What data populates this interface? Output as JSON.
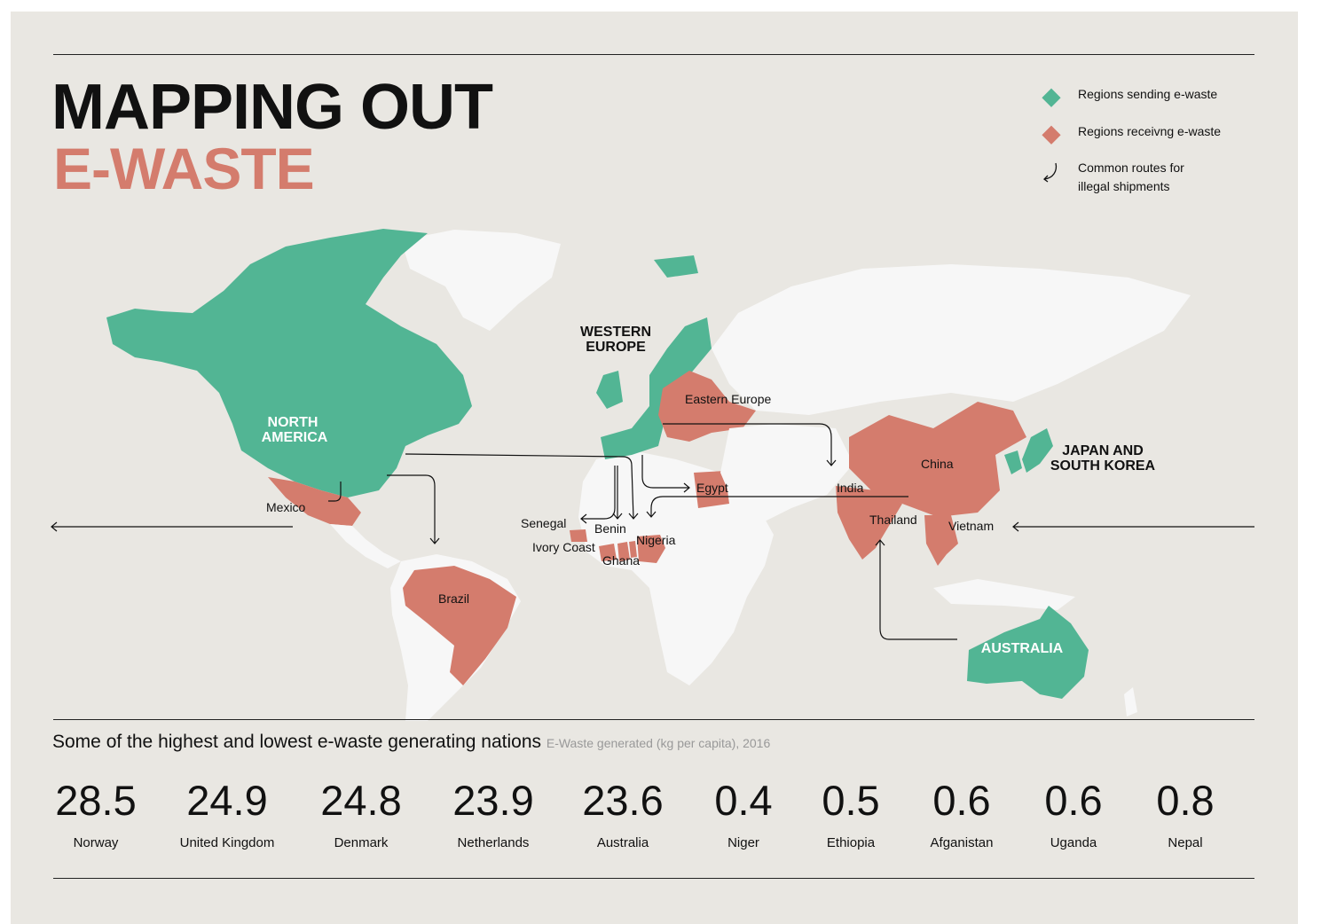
{
  "title": {
    "line1": "MAPPING OUT",
    "line2": "E-WASTE"
  },
  "colors": {
    "sending": "#52b594",
    "receiving": "#d47c6d",
    "background": "#e9e7e2",
    "land": "#f7f7f7"
  },
  "legend": [
    {
      "icon": "diamond-green",
      "label": "Regions sending e-waste"
    },
    {
      "icon": "diamond-red",
      "label": "Regions receivng e-waste"
    },
    {
      "icon": "curved-arrow-icon",
      "label": "Common routes for illegal shipments"
    }
  ],
  "map": {
    "sending_regions": [
      "NORTH AMERICA",
      "WESTERN EUROPE",
      "JAPAN AND SOUTH KOREA",
      "AUSTRALIA"
    ],
    "receiving_regions": [
      "Eastern Europe",
      "China",
      "India",
      "Thailand",
      "Vietnam",
      "Egypt",
      "Mexico",
      "Brazil",
      "Senegal",
      "Benin",
      "Nigeria",
      "Ivory Coast",
      "Ghana"
    ],
    "labels": {
      "north_america_1": "NORTH",
      "north_america_2": "AMERICA",
      "western_europe_1": "WESTERN",
      "western_europe_2": "EUROPE",
      "japan_1": "JAPAN AND",
      "japan_2": "SOUTH KOREA",
      "australia": "AUSTRALIA",
      "eastern_europe": "Eastern Europe",
      "china": "China",
      "india": "India",
      "thailand": "Thailand",
      "vietnam": "Vietnam",
      "egypt": "Egypt",
      "mexico": "Mexico",
      "brazil": "Brazil",
      "senegal": "Senegal",
      "benin": "Benin",
      "nigeria": "Nigeria",
      "ivory_coast": "Ivory Coast",
      "ghana": "Ghana"
    }
  },
  "stats": {
    "heading": "Some of the highest and lowest e-waste generating nations",
    "note": "E-Waste generated (kg per capita), 2016",
    "items": [
      {
        "value": "28.5",
        "country": "Norway"
      },
      {
        "value": "24.9",
        "country": "United Kingdom"
      },
      {
        "value": "24.8",
        "country": "Denmark"
      },
      {
        "value": "23.9",
        "country": "Netherlands"
      },
      {
        "value": "23.6",
        "country": "Australia"
      },
      {
        "value": "0.4",
        "country": "Niger"
      },
      {
        "value": "0.5",
        "country": "Ethiopia"
      },
      {
        "value": "0.6",
        "country": "Afganistan"
      },
      {
        "value": "0.6",
        "country": "Uganda"
      },
      {
        "value": "0.8",
        "country": "Nepal"
      }
    ]
  }
}
